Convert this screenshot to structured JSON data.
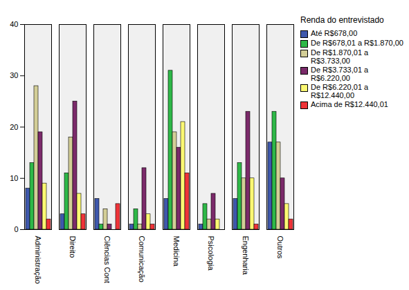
{
  "chart_data": {
    "type": "bar",
    "categories": [
      "Administração",
      "Direito",
      "Ciências Cont",
      "Comunicação",
      "Medicina",
      "Psicologia",
      "Engenharia",
      "Outros"
    ],
    "series": [
      {
        "name": "Até R$678,00",
        "color": "#3e58ac",
        "values": [
          8,
          3,
          6,
          1,
          6,
          1,
          6,
          17
        ]
      },
      {
        "name": "De R$678,01 a R$1.870,00",
        "color": "#2eb848",
        "values": [
          13,
          11,
          1,
          4,
          31,
          5,
          13,
          23
        ]
      },
      {
        "name": "De R$1.870,01 a R$3.733,00",
        "color": "#d3ce97",
        "values": [
          28,
          18,
          4,
          1,
          19,
          2,
          10,
          17
        ]
      },
      {
        "name": "De R$3.733,01 a R$6.220,00",
        "color": "#7b2a6a",
        "values": [
          19,
          25,
          1,
          12,
          16,
          7,
          23,
          10
        ]
      },
      {
        "name": "De R$6.220,01 a R$12.440,00",
        "color": "#fbf873",
        "values": [
          9,
          7,
          0,
          3,
          21,
          2,
          10,
          5
        ]
      },
      {
        "name": "Acima de R$12.440,01",
        "color": "#ef3338",
        "values": [
          2,
          3,
          5,
          1,
          11,
          0,
          1,
          2
        ]
      }
    ],
    "legend_title": "Renda do entrevistado",
    "legend": "right",
    "ylim": [
      0,
      40
    ],
    "yticks": [
      0,
      10,
      20,
      30,
      40
    ],
    "grid": false
  }
}
